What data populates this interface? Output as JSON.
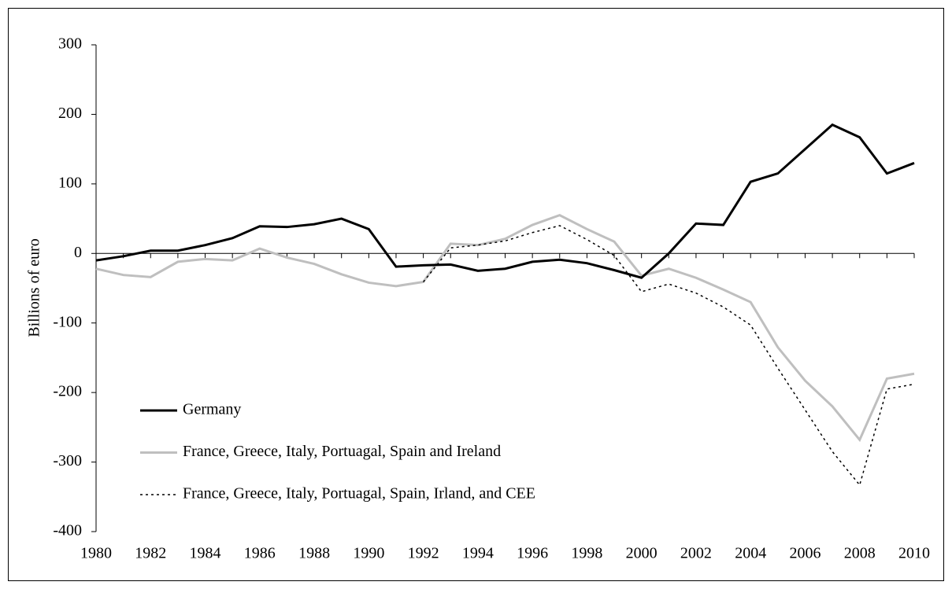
{
  "chart_data": {
    "type": "line",
    "y_label": "Billions of euro",
    "x": [
      1980,
      1981,
      1982,
      1983,
      1984,
      1985,
      1986,
      1987,
      1988,
      1989,
      1990,
      1991,
      1992,
      1993,
      1994,
      1995,
      1996,
      1997,
      1998,
      1999,
      2000,
      2001,
      2002,
      2003,
      2004,
      2005,
      2006,
      2007,
      2008,
      2009,
      2010
    ],
    "xlim": [
      1980,
      2010
    ],
    "xticks": [
      1980,
      1982,
      1984,
      1986,
      1988,
      1990,
      1992,
      1994,
      1996,
      1998,
      2000,
      2002,
      2004,
      2006,
      2008,
      2010
    ],
    "ylim": [
      -400,
      300
    ],
    "yticks": [
      -400,
      -300,
      -200,
      -100,
      0,
      100,
      200,
      300
    ],
    "legend": "lower left",
    "series": [
      {
        "name": "Germany",
        "color": "#000000",
        "style": "solid",
        "values": [
          -10,
          -4,
          4,
          4,
          12,
          22,
          39,
          38,
          42,
          50,
          35,
          -19,
          -17,
          -16,
          -25,
          -22,
          -12,
          -9,
          -14,
          -24,
          -35,
          0,
          43,
          41,
          103,
          115,
          150,
          185,
          167,
          115,
          130
        ]
      },
      {
        "name": "France, Greece, Italy, Portuagal, Spain and Ireland",
        "color": "#bfbfbf",
        "style": "solid",
        "values": [
          -22,
          -31,
          -34,
          -12,
          -8,
          -10,
          7,
          -6,
          -15,
          -30,
          -42,
          -47,
          -41,
          14,
          12,
          21,
          41,
          55,
          35,
          17,
          -32,
          -22,
          -35,
          -52,
          -70,
          -135,
          -183,
          -220,
          -268,
          -180,
          -173
        ]
      },
      {
        "name": "France, Greece, Italy, Portuagal, Spain, Irland, and CEE",
        "color": "#000000",
        "style": "dotted",
        "values": [
          null,
          null,
          null,
          null,
          null,
          null,
          null,
          null,
          null,
          null,
          null,
          null,
          -41,
          8,
          12,
          18,
          30,
          40,
          20,
          -3,
          -55,
          -44,
          -57,
          -77,
          -103,
          -165,
          -225,
          -285,
          -333,
          -195,
          -188
        ]
      }
    ]
  }
}
